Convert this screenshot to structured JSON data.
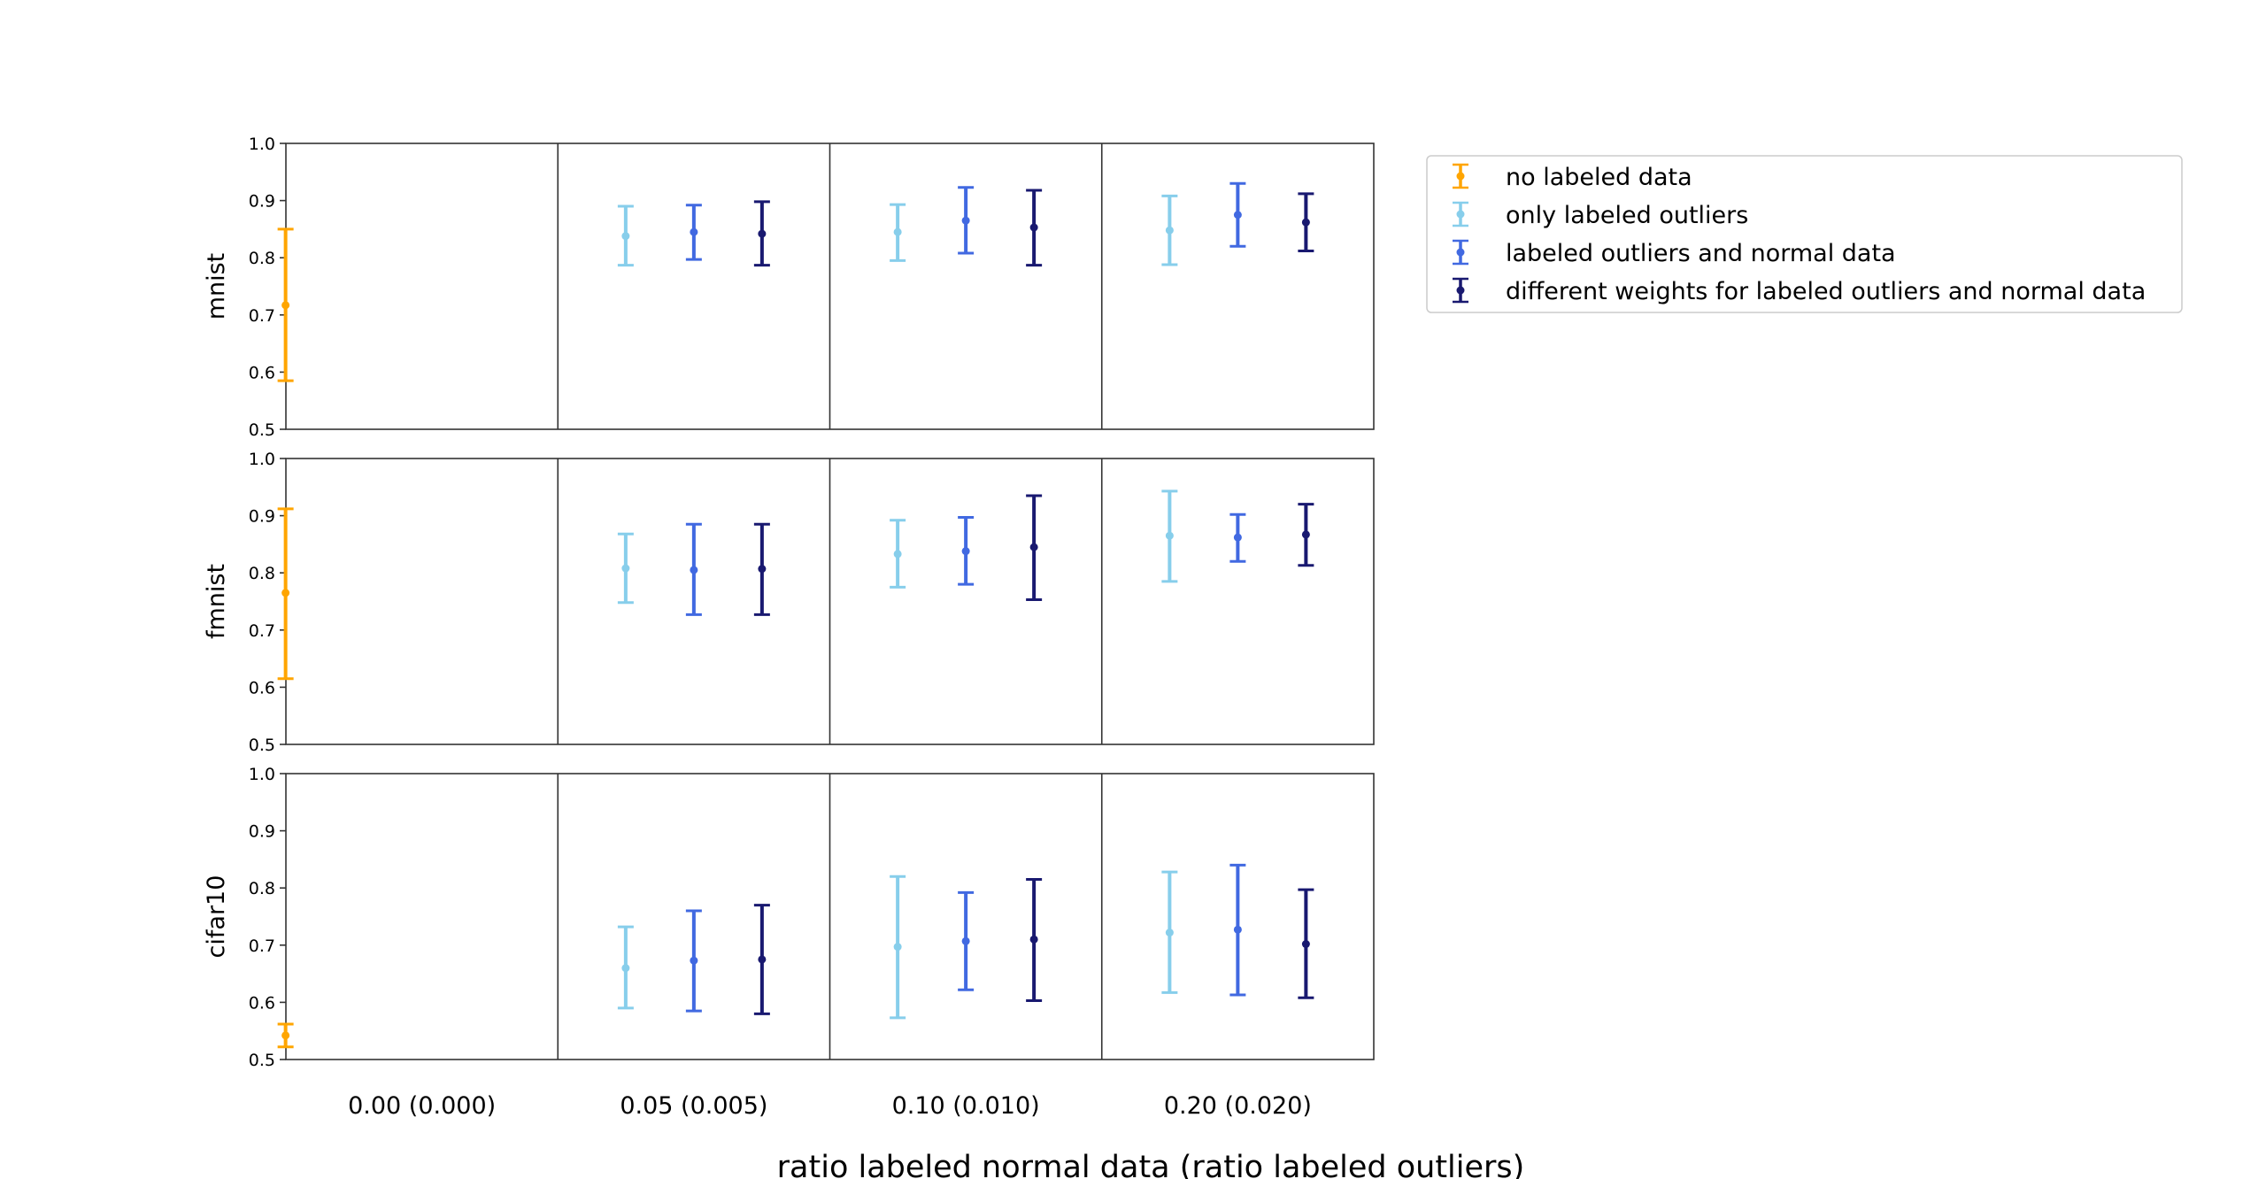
{
  "chart_data": {
    "type": "errorbar",
    "xlabel": "ratio labeled normal data (ratio labeled outliers)",
    "categories": [
      "0.00 (0.000)",
      "0.05 (0.005)",
      "0.10 (0.010)",
      "0.20 (0.020)"
    ],
    "ylim": [
      0.5,
      1.0
    ],
    "yticks": [
      "0.5",
      "0.6",
      "0.7",
      "0.8",
      "0.9",
      "1.0"
    ],
    "grid": false,
    "legend_position": "top-right, outside the plot area",
    "series": [
      {
        "name": "no labeled data",
        "color": "#FFA500"
      },
      {
        "name": "only labeled outliers",
        "color": "#87CEEB"
      },
      {
        "name": "labeled outliers and normal data",
        "color": "#4169E1"
      },
      {
        "name": "different weights for labeled outliers and normal data",
        "color": "#191970"
      }
    ],
    "panels": [
      {
        "ylabel": "mnist",
        "points": [
          {
            "category": 0,
            "series": 0,
            "mean": 0.717,
            "low": 0.585,
            "high": 0.85
          },
          {
            "category": 1,
            "series": 1,
            "mean": 0.838,
            "low": 0.787,
            "high": 0.89
          },
          {
            "category": 1,
            "series": 2,
            "mean": 0.845,
            "low": 0.797,
            "high": 0.892
          },
          {
            "category": 1,
            "series": 3,
            "mean": 0.842,
            "low": 0.787,
            "high": 0.898
          },
          {
            "category": 2,
            "series": 1,
            "mean": 0.845,
            "low": 0.795,
            "high": 0.893
          },
          {
            "category": 2,
            "series": 2,
            "mean": 0.865,
            "low": 0.808,
            "high": 0.923
          },
          {
            "category": 2,
            "series": 3,
            "mean": 0.853,
            "low": 0.787,
            "high": 0.918
          },
          {
            "category": 3,
            "series": 1,
            "mean": 0.848,
            "low": 0.788,
            "high": 0.908
          },
          {
            "category": 3,
            "series": 2,
            "mean": 0.875,
            "low": 0.82,
            "high": 0.93
          },
          {
            "category": 3,
            "series": 3,
            "mean": 0.862,
            "low": 0.812,
            "high": 0.912
          }
        ]
      },
      {
        "ylabel": "fmnist",
        "points": [
          {
            "category": 0,
            "series": 0,
            "mean": 0.765,
            "low": 0.615,
            "high": 0.912
          },
          {
            "category": 1,
            "series": 1,
            "mean": 0.808,
            "low": 0.748,
            "high": 0.868
          },
          {
            "category": 1,
            "series": 2,
            "mean": 0.805,
            "low": 0.727,
            "high": 0.885
          },
          {
            "category": 1,
            "series": 3,
            "mean": 0.807,
            "low": 0.727,
            "high": 0.885
          },
          {
            "category": 2,
            "series": 1,
            "mean": 0.833,
            "low": 0.775,
            "high": 0.892
          },
          {
            "category": 2,
            "series": 2,
            "mean": 0.838,
            "low": 0.78,
            "high": 0.897
          },
          {
            "category": 2,
            "series": 3,
            "mean": 0.845,
            "low": 0.753,
            "high": 0.935
          },
          {
            "category": 3,
            "series": 1,
            "mean": 0.865,
            "low": 0.785,
            "high": 0.943
          },
          {
            "category": 3,
            "series": 2,
            "mean": 0.862,
            "low": 0.82,
            "high": 0.902
          },
          {
            "category": 3,
            "series": 3,
            "mean": 0.867,
            "low": 0.813,
            "high": 0.92
          }
        ]
      },
      {
        "ylabel": "cifar10",
        "points": [
          {
            "category": 0,
            "series": 0,
            "mean": 0.542,
            "low": 0.522,
            "high": 0.562
          },
          {
            "category": 1,
            "series": 1,
            "mean": 0.66,
            "low": 0.59,
            "high": 0.732
          },
          {
            "category": 1,
            "series": 2,
            "mean": 0.673,
            "low": 0.585,
            "high": 0.76
          },
          {
            "category": 1,
            "series": 3,
            "mean": 0.675,
            "low": 0.58,
            "high": 0.77
          },
          {
            "category": 2,
            "series": 1,
            "mean": 0.697,
            "low": 0.573,
            "high": 0.82
          },
          {
            "category": 2,
            "series": 2,
            "mean": 0.707,
            "low": 0.622,
            "high": 0.792
          },
          {
            "category": 2,
            "series": 3,
            "mean": 0.71,
            "low": 0.603,
            "high": 0.815
          },
          {
            "category": 3,
            "series": 1,
            "mean": 0.722,
            "low": 0.617,
            "high": 0.828
          },
          {
            "category": 3,
            "series": 2,
            "mean": 0.727,
            "low": 0.613,
            "high": 0.84
          },
          {
            "category": 3,
            "series": 3,
            "mean": 0.702,
            "low": 0.608,
            "high": 0.797
          }
        ]
      }
    ]
  }
}
